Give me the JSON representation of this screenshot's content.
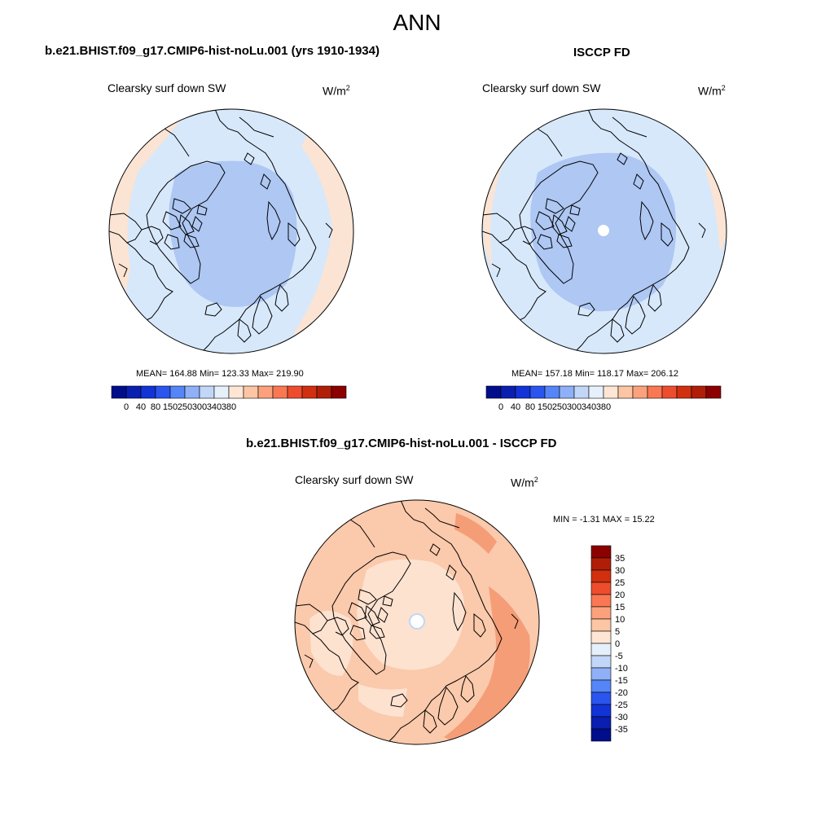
{
  "season": "ANN",
  "variable_name": "Clearsky surf down SW",
  "units_base": "W/m",
  "units_exp": "2",
  "top_left": {
    "title": "b.e21.BHIST.f09_g17.CMIP6-hist-noLu.001 (yrs 1910-1934)",
    "stats": "MEAN= 164.88  Min= 123.33  Max= 219.90"
  },
  "top_right": {
    "title": "ISCCP FD",
    "stats": "MEAN= 157.18  Min= 118.17  Max= 206.12"
  },
  "abs_colorbar": {
    "labels": [
      "0",
      "40",
      "80",
      "150",
      "250",
      "300",
      "340",
      "380"
    ],
    "colors": [
      "#000e8c",
      "#0a1fb0",
      "#1233d6",
      "#2a55ee",
      "#5585f7",
      "#8fb0f7",
      "#c2d6f7",
      "#e6f0fb",
      "#ffe6d4",
      "#fcc5a4",
      "#fba17c",
      "#f97853",
      "#ee4d2d",
      "#d0300f",
      "#b01e08",
      "#8c0000"
    ]
  },
  "bottom": {
    "title": "b.e21.BHIST.f09_g17.CMIP6-hist-noLu.001 - ISCCP FD",
    "stats": "MIN =  -1.31 MAX =  15.22"
  },
  "diff_colorbar": {
    "labels": [
      "35",
      "30",
      "25",
      "20",
      "15",
      "10",
      "5",
      "0",
      "-5",
      "-10",
      "-15",
      "-20",
      "-25",
      "-30",
      "-35"
    ],
    "colors": [
      "#8c0000",
      "#b01e08",
      "#d0300f",
      "#ee4d2d",
      "#f97853",
      "#fba17c",
      "#fcc5a4",
      "#ffe6d4",
      "#e6f0fb",
      "#c2d6f7",
      "#8fb0f7",
      "#5585f7",
      "#2a55ee",
      "#1233d6",
      "#0a1fb0",
      "#000e8c"
    ]
  },
  "colors": {
    "abs_ocean_light": "#d7e8fb",
    "abs_core": "#aec7f3",
    "abs_warm": "#fbe4d3",
    "diff_base": "#fbc9ab",
    "diff_light": "#fde2d0",
    "diff_strong": "#f49d77",
    "coast": "#000000"
  }
}
